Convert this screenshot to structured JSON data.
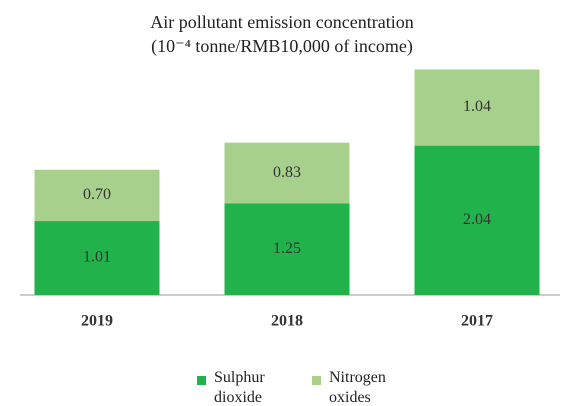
{
  "chart_data": {
    "type": "stacked_bar",
    "title": "Air pollutant emission concentration",
    "subtitle": "(10⁻⁴ tonne/RMB10,000 of income)",
    "categories": [
      "2019",
      "2018",
      "2017"
    ],
    "series": [
      {
        "name": "Sulphur dioxide",
        "color": "#22b24c",
        "values": [
          1.01,
          1.25,
          2.04
        ],
        "value_labels": [
          "1.01",
          "1.25",
          "2.04"
        ]
      },
      {
        "name": "Nitrogen oxides",
        "color": "#a8d08d",
        "values": [
          0.7,
          0.83,
          1.04
        ],
        "value_labels": [
          "0.70",
          "0.83",
          "1.04"
        ]
      }
    ],
    "ylim": [
      0,
      3.1
    ]
  }
}
